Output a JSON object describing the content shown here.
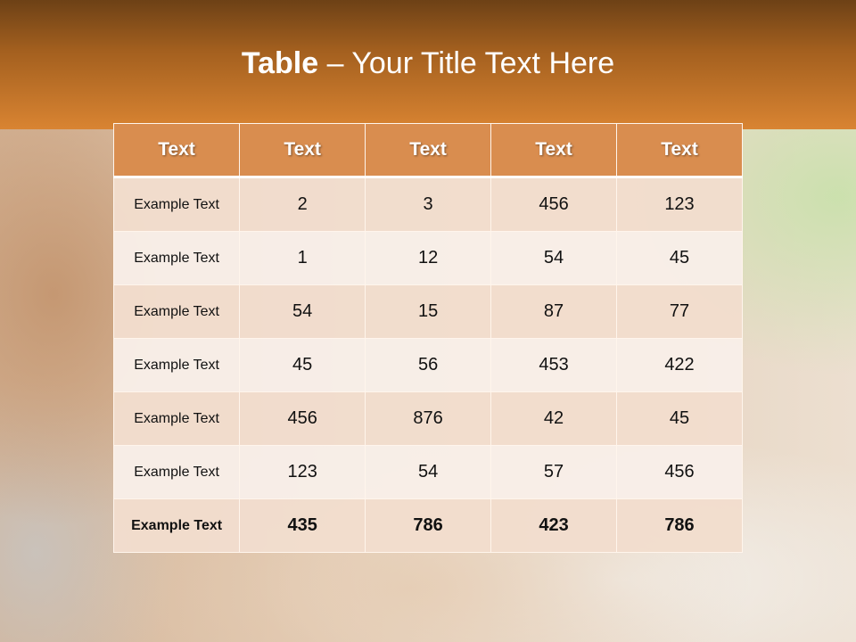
{
  "slide": {
    "title_bold": "Table",
    "title_rest": " – Your Title Text Here"
  },
  "table": {
    "headers": [
      "Text",
      "Text",
      "Text",
      "Text",
      "Text"
    ],
    "rows": [
      [
        "Example Text",
        "2",
        "3",
        "456",
        "123"
      ],
      [
        "Example Text",
        "1",
        "12",
        "54",
        "45"
      ],
      [
        "Example Text",
        "54",
        "15",
        "87",
        "77"
      ],
      [
        "Example Text",
        "45",
        "56",
        "453",
        "422"
      ],
      [
        "Example Text",
        "456",
        "876",
        "42",
        "45"
      ],
      [
        "Example Text",
        "123",
        "54",
        "57",
        "456"
      ],
      [
        "Example Text",
        "435",
        "786",
        "423",
        "786"
      ]
    ]
  },
  "colors": {
    "header_bg": "#d98d4f",
    "band_top": "#6d4116",
    "band_bottom": "#d98432",
    "row_odd": "#f2ddcd",
    "row_even": "#f8eee8"
  }
}
